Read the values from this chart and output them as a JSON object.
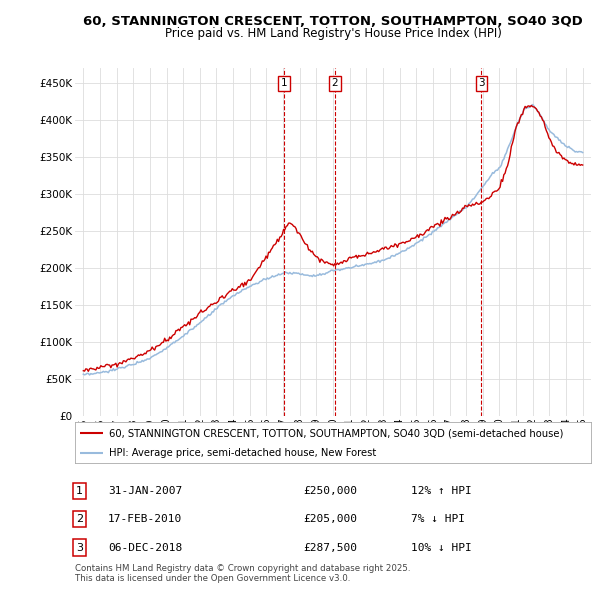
{
  "title": "60, STANNINGTON CRESCENT, TOTTON, SOUTHAMPTON, SO40 3QD",
  "subtitle": "Price paid vs. HM Land Registry's House Price Index (HPI)",
  "price_color": "#cc0000",
  "hpi_color": "#99bbdd",
  "background_color": "#ffffff",
  "grid_color": "#dddddd",
  "ylim": [
    0,
    470000
  ],
  "yticks": [
    0,
    50000,
    100000,
    150000,
    200000,
    250000,
    300000,
    350000,
    400000,
    450000
  ],
  "xlim_start": 1994.5,
  "xlim_end": 2025.5,
  "transactions": [
    {
      "label": "1",
      "date": 2007.08,
      "price": 250000
    },
    {
      "label": "2",
      "date": 2010.12,
      "price": 205000
    },
    {
      "label": "3",
      "date": 2018.92,
      "price": 287500
    }
  ],
  "legend_entries": [
    "60, STANNINGTON CRESCENT, TOTTON, SOUTHAMPTON, SO40 3QD (semi-detached house)",
    "HPI: Average price, semi-detached house, New Forest"
  ],
  "table_rows": [
    {
      "num": "1",
      "date": "31-JAN-2007",
      "price": "£250,000",
      "hpi": "12% ↑ HPI"
    },
    {
      "num": "2",
      "date": "17-FEB-2010",
      "price": "£205,000",
      "hpi": "7% ↓ HPI"
    },
    {
      "num": "3",
      "date": "06-DEC-2018",
      "price": "£287,500",
      "hpi": "10% ↓ HPI"
    }
  ],
  "footer": "Contains HM Land Registry data © Crown copyright and database right 2025.\nThis data is licensed under the Open Government Licence v3.0.",
  "hpi_keypoints_x": [
    1995,
    1996,
    1997,
    1998,
    1999,
    2000,
    2001,
    2002,
    2003,
    2004,
    2005,
    2006,
    2007,
    2007.5,
    2008,
    2008.5,
    2009,
    2009.5,
    2010,
    2011,
    2012,
    2013,
    2014,
    2015,
    2016,
    2017,
    2018,
    2018.5,
    2019,
    2019.5,
    2020,
    2020.5,
    2021,
    2021.5,
    2022,
    2022.5,
    2023,
    2023.5,
    2024,
    2024.5,
    2025
  ],
  "hpi_keypoints_y": [
    55000,
    58000,
    63000,
    70000,
    78000,
    92000,
    108000,
    125000,
    145000,
    162000,
    175000,
    185000,
    193000,
    193000,
    192000,
    190000,
    190000,
    192000,
    196000,
    200000,
    205000,
    210000,
    220000,
    233000,
    248000,
    265000,
    282000,
    295000,
    310000,
    325000,
    335000,
    360000,
    390000,
    415000,
    420000,
    405000,
    385000,
    375000,
    365000,
    358000,
    355000
  ],
  "price_keypoints_x": [
    1995,
    1996,
    1997,
    1998,
    1999,
    2000,
    2001,
    2002,
    2003,
    2004,
    2005,
    2006,
    2007.0,
    2007.08,
    2007.3,
    2007.7,
    2008,
    2008.5,
    2009,
    2009.5,
    2010.0,
    2010.12,
    2010.5,
    2011,
    2012,
    2013,
    2014,
    2015,
    2016,
    2017,
    2018,
    2018.5,
    2018.92,
    2019,
    2019.5,
    2020,
    2020.5,
    2021,
    2021.5,
    2022,
    2022.5,
    2023,
    2023.5,
    2024,
    2024.5,
    2025
  ],
  "price_keypoints_y": [
    62000,
    65000,
    70000,
    78000,
    88000,
    103000,
    120000,
    138000,
    155000,
    170000,
    183000,
    215000,
    248000,
    250000,
    262000,
    255000,
    245000,
    228000,
    215000,
    208000,
    205000,
    205000,
    208000,
    213000,
    218000,
    225000,
    232000,
    242000,
    255000,
    268000,
    282000,
    286000,
    287500,
    290000,
    298000,
    308000,
    340000,
    390000,
    415000,
    420000,
    405000,
    375000,
    355000,
    345000,
    340000,
    340000
  ]
}
